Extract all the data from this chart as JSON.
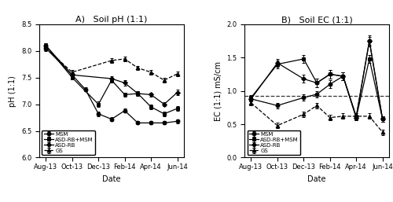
{
  "pH_MSM_x": [
    0,
    1,
    2,
    3,
    4,
    5,
    6,
    7,
    8,
    9
  ],
  "pH_MSM_y": [
    8.05,
    7.55,
    7.28,
    6.82,
    6.72,
    6.88,
    6.65,
    6.65,
    6.65,
    6.68
  ],
  "pH_MSM_e": [
    0.05,
    0.04,
    0.04,
    0.04,
    0.04,
    0.04,
    0.03,
    0.03,
    0.03,
    0.04
  ],
  "pH_RB_MSM_x": [
    0,
    1,
    3,
    4,
    5,
    6,
    7,
    8,
    9
  ],
  "pH_RB_MSM_y": [
    8.1,
    7.5,
    7.0,
    7.45,
    7.18,
    7.2,
    6.95,
    6.82,
    6.92
  ],
  "pH_RB_MSM_e": [
    0.04,
    0.04,
    0.05,
    0.05,
    0.04,
    0.04,
    0.04,
    0.04,
    0.05
  ],
  "pH_RB_x": [
    0,
    1,
    4,
    5,
    6,
    7,
    8,
    9
  ],
  "pH_RB_y": [
    8.1,
    7.55,
    7.48,
    7.4,
    7.2,
    7.18,
    7.0,
    7.22
  ],
  "pH_RB_e": [
    0.04,
    0.04,
    0.05,
    0.05,
    0.04,
    0.04,
    0.04,
    0.05
  ],
  "pH_GS_x": [
    0,
    1,
    4,
    5,
    6,
    7,
    8,
    9
  ],
  "pH_GS_y": [
    8.05,
    7.6,
    7.82,
    7.85,
    7.68,
    7.6,
    7.45,
    7.57
  ],
  "pH_GS_e": [
    0.04,
    0.04,
    0.04,
    0.04,
    0.04,
    0.04,
    0.04,
    0.04
  ],
  "EC_MSM_x": [
    0,
    1,
    3,
    4,
    5,
    6,
    7,
    8,
    9
  ],
  "EC_MSM_y": [
    0.88,
    0.78,
    0.9,
    0.95,
    1.1,
    1.22,
    0.62,
    1.75,
    0.58
  ],
  "EC_MSM_e": [
    0.04,
    0.04,
    0.05,
    0.05,
    0.06,
    0.06,
    0.04,
    0.06,
    0.04
  ],
  "EC_RB_MSM_x": [
    0,
    1,
    3,
    4,
    5,
    6,
    7,
    8,
    9
  ],
  "EC_RB_MSM_y": [
    0.9,
    1.4,
    1.48,
    1.12,
    1.25,
    1.22,
    0.6,
    1.48,
    0.58
  ],
  "EC_RB_MSM_e": [
    0.04,
    0.06,
    0.06,
    0.06,
    0.06,
    0.06,
    0.04,
    0.06,
    0.04
  ],
  "EC_RB_x": [
    0,
    1,
    3,
    4,
    5,
    6,
    7,
    8,
    9
  ],
  "EC_RB_y": [
    0.88,
    1.42,
    1.18,
    1.12,
    1.25,
    1.22,
    0.6,
    1.75,
    0.58
  ],
  "EC_RB_e": [
    0.04,
    0.06,
    0.06,
    0.06,
    0.06,
    0.06,
    0.04,
    0.08,
    0.04
  ],
  "EC_GS_x": [
    0,
    1,
    3,
    4,
    5,
    6,
    7,
    8,
    9
  ],
  "EC_GS_y": [
    0.82,
    0.48,
    0.65,
    0.78,
    0.6,
    0.62,
    0.62,
    0.62,
    0.38
  ],
  "EC_GS_e": [
    0.04,
    0.04,
    0.04,
    0.04,
    0.04,
    0.04,
    0.04,
    0.04,
    0.04
  ],
  "EC_ref_line": 0.92,
  "pH_ylim": [
    6.0,
    8.5
  ],
  "pH_yticks": [
    6.0,
    6.5,
    7.0,
    7.5,
    8.0,
    8.5
  ],
  "EC_ylim": [
    0.0,
    2.0
  ],
  "EC_yticks": [
    0.0,
    0.5,
    1.0,
    1.5,
    2.0
  ],
  "xlabel": "Date",
  "pH_ylabel": "pH (1:1)",
  "EC_ylabel": "EC (1:1) mS/cm",
  "pH_title": "A)   Soil pH (1:1)",
  "EC_title": "B)   Soil EC (1:1)",
  "xtick_pos": [
    0,
    1.5,
    3,
    4.5,
    6,
    7.5,
    9
  ],
  "xtick_labels": [
    "Aug-13",
    "Oct-13",
    "Dec-13",
    "Feb-14",
    "Apr-14",
    "Jun-14"
  ],
  "xtick_pos6": [
    0,
    1.5,
    3,
    4.5,
    6,
    7.5
  ],
  "xlim": [
    -0.3,
    9.3
  ],
  "color_all": "black",
  "legend_labels": [
    "MSM",
    "ASD-RB+MSM",
    "ASD-RB",
    "GS"
  ]
}
